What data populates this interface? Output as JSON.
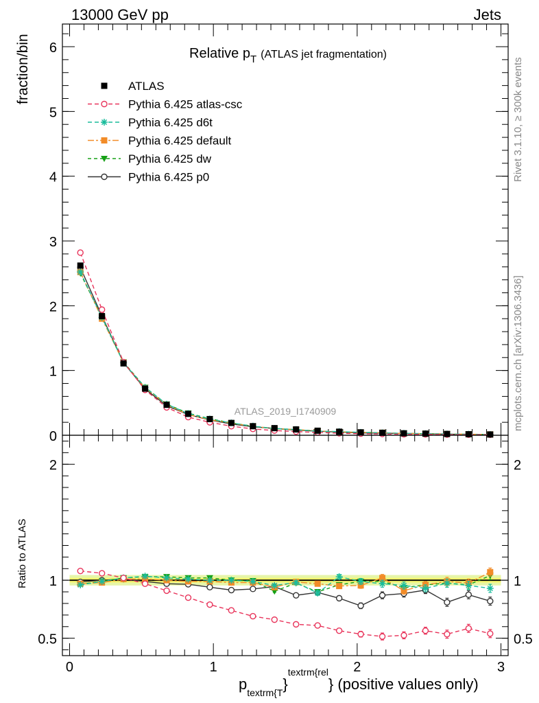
{
  "header": {
    "left": "13000 GeV pp",
    "right": "Jets"
  },
  "side_labels": {
    "rivet": "Rivet 3.1.10, ≥ 300k events",
    "mcplots": "mcplots.cern.ch [arXiv:1306.3436]"
  },
  "chart_data": [
    {
      "type": "line",
      "panel": "main",
      "title": "Relative p",
      "title_subscript": "T",
      "title_suffix": "(ATLAS jet fragmentation)",
      "watermark": "ATLAS_2019_I1740909",
      "ylabel": "fraction/bin",
      "ylim": [
        0,
        6.35
      ],
      "yticks": [
        0,
        1,
        2,
        3,
        4,
        5,
        6
      ],
      "xlim": [
        -0.05,
        3.05
      ],
      "x": [
        0.075,
        0.225,
        0.375,
        0.525,
        0.675,
        0.825,
        0.975,
        1.125,
        1.275,
        1.425,
        1.575,
        1.725,
        1.875,
        2.025,
        2.175,
        2.325,
        2.475,
        2.625,
        2.775,
        2.925
      ],
      "legend_position": "top-left",
      "series": [
        {
          "name": "ATLAS",
          "color": "#000000",
          "marker": "square",
          "dash": "none",
          "line": false,
          "values": [
            2.62,
            1.84,
            1.11,
            0.72,
            0.47,
            0.33,
            0.25,
            0.19,
            0.14,
            0.11,
            0.09,
            0.07,
            0.055,
            0.045,
            0.038,
            0.03,
            0.025,
            0.02,
            0.016,
            0.012
          ]
        },
        {
          "name": "Pythia 6.425 atlas-csc",
          "color": "#e8335a",
          "marker": "circle-open",
          "dash": "6,4",
          "values": [
            2.82,
            1.94,
            1.13,
            0.7,
            0.43,
            0.28,
            0.2,
            0.14,
            0.097,
            0.073,
            0.056,
            0.043,
            0.031,
            0.024,
            0.02,
            0.016,
            0.014,
            0.011,
            0.009,
            0.007
          ]
        },
        {
          "name": "Pythia 6.425 d6t",
          "color": "#1abc9c",
          "marker": "star",
          "dash": "6,4",
          "values": [
            2.52,
            1.82,
            1.12,
            0.74,
            0.48,
            0.335,
            0.25,
            0.19,
            0.14,
            0.105,
            0.088,
            0.063,
            0.056,
            0.044,
            0.037,
            0.029,
            0.024,
            0.019,
            0.016,
            0.011
          ]
        },
        {
          "name": "Pythia 6.425 default",
          "color": "#f28c28",
          "marker": "square",
          "dash": "9,3,3,3",
          "values": [
            2.52,
            1.8,
            1.12,
            0.73,
            0.47,
            0.32,
            0.24,
            0.185,
            0.137,
            0.104,
            0.087,
            0.068,
            0.05,
            0.043,
            0.039,
            0.027,
            0.024,
            0.02,
            0.016,
            0.013
          ]
        },
        {
          "name": "Pythia 6.425 dw",
          "color": "#16a016",
          "marker": "triangle-down",
          "dash": "5,4",
          "values": [
            2.5,
            1.82,
            1.13,
            0.74,
            0.48,
            0.34,
            0.255,
            0.19,
            0.14,
            0.1,
            0.088,
            0.064,
            0.053,
            0.044,
            0.038,
            0.028,
            0.024,
            0.02,
            0.015,
            0.0125
          ]
        },
        {
          "name": "Pythia 6.425 p0",
          "color": "#333333",
          "marker": "circle-open",
          "dash": "none",
          "values": [
            2.59,
            1.84,
            1.12,
            0.715,
            0.455,
            0.32,
            0.235,
            0.175,
            0.13,
            0.105,
            0.079,
            0.063,
            0.047,
            0.035,
            0.033,
            0.027,
            0.023,
            0.016,
            0.014,
            0.01
          ]
        }
      ]
    },
    {
      "type": "line",
      "panel": "ratio",
      "ylabel": "Ratio to ATLAS",
      "ylim": [
        0.35,
        2.25
      ],
      "yticks": [
        0.5,
        1,
        2
      ],
      "ytick_labels": [
        "0.5",
        "1",
        "2"
      ],
      "xlabel": "p",
      "xlabel_subscript": "textrm{T",
      "xlabel_middle": "}",
      "xlabel_superscript": "textrm{rel",
      "xlabel_suffix": "} (positive values only)",
      "xlim": [
        -0.05,
        3.05
      ],
      "xticks": [
        0,
        1,
        2,
        3
      ],
      "xtick_labels": [
        "0",
        "1",
        "2",
        "3"
      ],
      "x": [
        0.075,
        0.225,
        0.375,
        0.525,
        0.675,
        0.825,
        0.975,
        1.125,
        1.275,
        1.425,
        1.575,
        1.725,
        1.875,
        2.025,
        2.175,
        2.325,
        2.475,
        2.625,
        2.775,
        2.925
      ],
      "band": {
        "inner": [
          0.98,
          1.02
        ],
        "outer": [
          0.955,
          1.045
        ]
      },
      "series": [
        {
          "name": "Pythia 6.425 atlas-csc",
          "color": "#e8335a",
          "marker": "circle-open",
          "dash": "6,4",
          "values": [
            1.08,
            1.06,
            1.02,
            0.97,
            0.91,
            0.85,
            0.79,
            0.74,
            0.69,
            0.66,
            0.62,
            0.61,
            0.565,
            0.535,
            0.515,
            0.525,
            0.565,
            0.535,
            0.585,
            0.54
          ],
          "errors": [
            0.005,
            0.005,
            0.005,
            0.005,
            0.005,
            0.005,
            0.005,
            0.005,
            0.006,
            0.007,
            0.01,
            0.012,
            0.02,
            0.025,
            0.03,
            0.03,
            0.03,
            0.035,
            0.035,
            0.035
          ]
        },
        {
          "name": "Pythia 6.425 d6t",
          "color": "#1abc9c",
          "marker": "star",
          "dash": "6,4",
          "values": [
            0.96,
            0.99,
            1.02,
            1.035,
            1.02,
            1.01,
            1.0,
            1.0,
            0.99,
            0.955,
            0.98,
            0.89,
            1.03,
            0.99,
            0.97,
            0.955,
            0.93,
            0.975,
            0.955,
            0.93
          ],
          "errors": [
            0.005,
            0.005,
            0.005,
            0.005,
            0.005,
            0.005,
            0.006,
            0.006,
            0.008,
            0.01,
            0.015,
            0.02,
            0.02,
            0.025,
            0.03,
            0.03,
            0.03,
            0.035,
            0.035,
            0.035
          ]
        },
        {
          "name": "Pythia 6.425 default",
          "color": "#f28c28",
          "marker": "square",
          "dash": "9,3,3,3",
          "values": [
            0.97,
            0.98,
            1.01,
            1.01,
            1.0,
            0.99,
            0.99,
            0.98,
            0.98,
            0.94,
            0.985,
            0.97,
            0.95,
            0.955,
            1.02,
            0.91,
            0.96,
            0.99,
            0.975,
            1.07
          ],
          "errors": [
            0.005,
            0.005,
            0.005,
            0.005,
            0.005,
            0.005,
            0.006,
            0.006,
            0.008,
            0.01,
            0.015,
            0.02,
            0.02,
            0.025,
            0.03,
            0.03,
            0.03,
            0.035,
            0.035,
            0.035
          ]
        },
        {
          "name": "Pythia 6.425 dw",
          "color": "#16a016",
          "marker": "triangle-down",
          "dash": "5,4",
          "values": [
            0.965,
            0.99,
            1.02,
            1.03,
            1.03,
            1.02,
            1.02,
            1.0,
            0.995,
            0.905,
            0.975,
            0.9,
            0.96,
            0.99,
            0.99,
            0.935,
            0.96,
            0.975,
            0.96,
            1.04
          ],
          "errors": [
            0.005,
            0.005,
            0.005,
            0.005,
            0.005,
            0.005,
            0.006,
            0.006,
            0.008,
            0.01,
            0.015,
            0.02,
            0.02,
            0.025,
            0.03,
            0.03,
            0.03,
            0.035,
            0.035,
            0.035
          ]
        },
        {
          "name": "Pythia 6.425 p0",
          "color": "#333333",
          "marker": "circle-open",
          "dash": "none",
          "values": [
            0.985,
            1.0,
            1.01,
            0.99,
            0.97,
            0.965,
            0.94,
            0.915,
            0.925,
            0.945,
            0.87,
            0.895,
            0.845,
            0.78,
            0.87,
            0.885,
            0.915,
            0.81,
            0.875,
            0.82
          ],
          "errors": [
            0.005,
            0.005,
            0.005,
            0.005,
            0.005,
            0.005,
            0.006,
            0.006,
            0.008,
            0.01,
            0.015,
            0.02,
            0.02,
            0.025,
            0.03,
            0.03,
            0.03,
            0.035,
            0.035,
            0.035
          ]
        }
      ]
    }
  ]
}
